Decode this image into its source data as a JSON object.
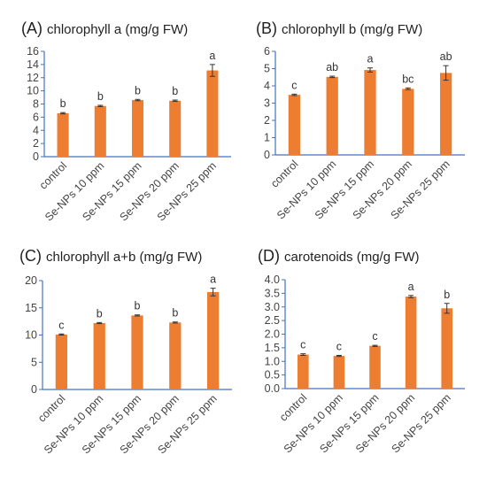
{
  "chart_data": [
    {
      "type": "bar",
      "panel": "(A)",
      "title": "chlorophyll a (mg/g FW)",
      "categories": [
        "control",
        "Se-NPs 10 ppm",
        "Se-NPs 15 ppm",
        "Se-NPs 20 ppm",
        "Se-NPs 25 ppm"
      ],
      "values": [
        6.6,
        7.7,
        8.6,
        8.5,
        13.1
      ],
      "errors": [
        0.1,
        0.1,
        0.1,
        0.1,
        0.9
      ],
      "letters": [
        "b",
        "b",
        "b",
        "b",
        "a"
      ],
      "ylim": [
        0,
        16
      ],
      "yticks": [
        "0",
        "2",
        "4",
        "6",
        "8",
        "10",
        "12",
        "14",
        "16"
      ],
      "grid": false,
      "color": "#ED7D31"
    },
    {
      "type": "bar",
      "panel": "(B)",
      "title": "chlorophyll b (mg/g FW)",
      "categories": [
        "control",
        "Se-NPs 10 ppm",
        "Se-NPs 15 ppm",
        "Se-NPs 20 ppm",
        "Se-NPs 25 ppm"
      ],
      "values": [
        3.48,
        4.52,
        4.92,
        3.83,
        4.75
      ],
      "errors": [
        0.04,
        0.04,
        0.12,
        0.05,
        0.42
      ],
      "letters": [
        "c",
        "ab",
        "a",
        "bc",
        "ab"
      ],
      "ylim": [
        0,
        6
      ],
      "yticks": [
        "0",
        "1",
        "2",
        "3",
        "4",
        "5",
        "6"
      ],
      "grid": false,
      "color": "#ED7D31"
    },
    {
      "type": "bar",
      "panel": "(C)",
      "title": "chlorophyll a+b (mg/g FW)",
      "categories": [
        "control",
        "Se-NPs 10 ppm",
        "Se-NPs 15 ppm",
        "Se-NPs 20 ppm",
        "Se-NPs 25 ppm"
      ],
      "values": [
        10.1,
        12.2,
        13.6,
        12.3,
        17.9
      ],
      "errors": [
        0.1,
        0.1,
        0.1,
        0.1,
        0.7
      ],
      "letters": [
        "c",
        "b",
        "b",
        "b",
        "a"
      ],
      "ylim": [
        0,
        20
      ],
      "yticks": [
        "0",
        "5",
        "10",
        "15",
        "20"
      ],
      "grid": false,
      "color": "#ED7D31"
    },
    {
      "type": "bar",
      "panel": "(D)",
      "title": "carotenoids (mg/g FW)",
      "categories": [
        "control",
        "Se-NPs 10 ppm",
        "Se-NPs 15 ppm",
        "Se-NPs 20 ppm",
        "Se-NPs 25 ppm"
      ],
      "values": [
        1.25,
        1.2,
        1.57,
        3.38,
        2.95
      ],
      "errors": [
        0.03,
        0.02,
        0.02,
        0.04,
        0.18
      ],
      "letters": [
        "c",
        "c",
        "c",
        "a",
        "b"
      ],
      "ylim": [
        0,
        4
      ],
      "yticks": [
        "0.0",
        "0.5",
        "1.0",
        "1.5",
        "2.0",
        "2.5",
        "3.0",
        "3.5",
        "4.0"
      ],
      "grid": false,
      "color": "#ED7D31"
    }
  ]
}
